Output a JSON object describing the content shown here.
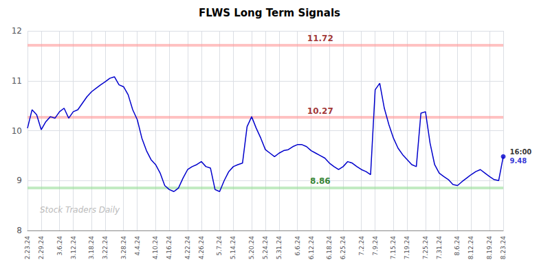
{
  "chart_data": {
    "type": "line",
    "title": "FLWS Long Term Signals",
    "color": "#0000cc",
    "ylim": [
      8,
      12
    ],
    "yticks": [
      8,
      9,
      10,
      11,
      12
    ],
    "grid": true,
    "categories": [
      "2.23.24",
      null,
      null,
      "2.29.24",
      null,
      null,
      null,
      "3.6.24",
      null,
      null,
      "3.12.24",
      null,
      null,
      null,
      "3.18.24",
      null,
      null,
      "3.22.24",
      null,
      null,
      null,
      "3.28.24",
      null,
      null,
      "4.4.24",
      null,
      null,
      null,
      "4.10.24",
      null,
      null,
      "4.16.24",
      null,
      null,
      null,
      "4.22.24",
      null,
      null,
      "4.26.24",
      null,
      null,
      null,
      "5.7.24",
      null,
      null,
      "5.14.24",
      null,
      null,
      null,
      "5.20.24",
      null,
      null,
      "5.24.24",
      null,
      null,
      "5.31.24",
      null,
      null,
      null,
      "6.6.24",
      null,
      null,
      "6.12.24",
      null,
      null,
      null,
      "6.18.24",
      null,
      null,
      "6.25.24",
      null,
      null,
      null,
      "7.2.24",
      null,
      null,
      "7.9.24",
      null,
      null,
      null,
      "7.15.24",
      null,
      null,
      "7.19.24",
      null,
      null,
      null,
      "7.25.24",
      null,
      null,
      "7.31.24",
      null,
      null,
      null,
      "8.6.24",
      null,
      null,
      "8.12.24",
      null,
      null,
      null,
      "8.19.24",
      null,
      null,
      "8.23.24"
    ],
    "values": [
      10.05,
      10.42,
      10.32,
      10.02,
      10.18,
      10.28,
      10.25,
      10.38,
      10.45,
      10.25,
      10.38,
      10.42,
      10.55,
      10.68,
      10.78,
      10.85,
      10.92,
      10.98,
      11.05,
      11.08,
      10.92,
      10.88,
      10.72,
      10.42,
      10.22,
      9.85,
      9.6,
      9.42,
      9.32,
      9.15,
      8.9,
      8.82,
      8.78,
      8.85,
      9.05,
      9.22,
      9.28,
      9.32,
      9.38,
      9.28,
      9.25,
      8.82,
      8.78,
      9.0,
      9.18,
      9.28,
      9.32,
      9.35,
      10.08,
      10.28,
      10.05,
      9.85,
      9.62,
      9.55,
      9.48,
      9.55,
      9.6,
      9.62,
      9.68,
      9.72,
      9.72,
      9.68,
      9.6,
      9.55,
      9.5,
      9.45,
      9.35,
      9.28,
      9.22,
      9.28,
      9.38,
      9.35,
      9.28,
      9.22,
      9.18,
      9.12,
      10.82,
      10.95,
      10.45,
      10.12,
      9.85,
      9.65,
      9.52,
      9.42,
      9.32,
      9.28,
      10.35,
      10.38,
      9.75,
      9.32,
      9.15,
      9.08,
      9.02,
      8.92,
      8.9,
      8.98,
      9.05,
      9.12,
      9.18,
      9.22,
      9.15,
      9.08,
      9.02,
      9.0,
      9.48
    ],
    "hlines": [
      {
        "value": 11.72,
        "color": "#ff9999",
        "label_color": "#880000"
      },
      {
        "value": 10.27,
        "color": "#ff9999",
        "label_color": "#880000"
      },
      {
        "value": 8.86,
        "color": "#99dd99",
        "label_color": "#006600"
      }
    ],
    "endpoint": {
      "value": 9.48,
      "time": "16:00",
      "color": "#0000cc"
    },
    "watermark": {
      "text": "Stock Traders Daily",
      "color": "#bbbbbb"
    }
  }
}
